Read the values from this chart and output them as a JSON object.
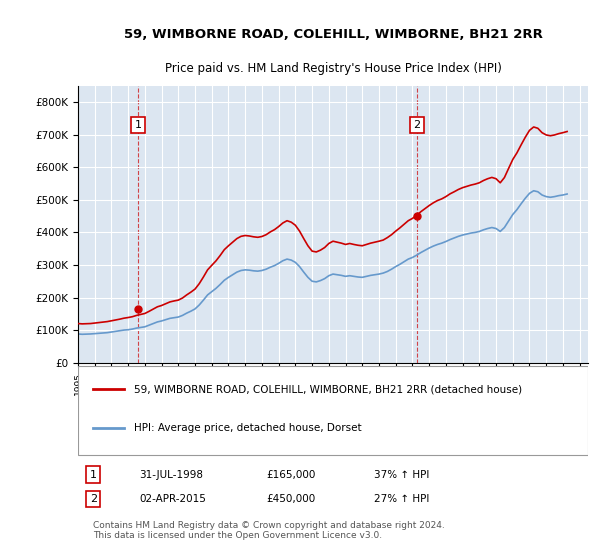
{
  "title": "59, WIMBORNE ROAD, COLEHILL, WIMBORNE, BH21 2RR",
  "subtitle": "Price paid vs. HM Land Registry's House Price Index (HPI)",
  "xlabel": "",
  "ylabel": "",
  "ylim": [
    0,
    850000
  ],
  "yticks": [
    0,
    100000,
    200000,
    300000,
    400000,
    500000,
    600000,
    700000,
    800000
  ],
  "ytick_labels": [
    "£0",
    "£100K",
    "£200K",
    "£300K",
    "£400K",
    "£500K",
    "£600K",
    "£700K",
    "£800K"
  ],
  "background_color": "#dce6f1",
  "plot_bg_color": "#dce6f1",
  "grid_color": "#ffffff",
  "red_line_color": "#cc0000",
  "blue_line_color": "#6699cc",
  "transaction1": {
    "date": "31-JUL-1998",
    "price": 165000,
    "label": "1",
    "pct": "37% ↑ HPI"
  },
  "transaction2": {
    "date": "02-APR-2015",
    "price": 450000,
    "label": "2",
    "pct": "27% ↑ HPI"
  },
  "legend_label_red": "59, WIMBORNE ROAD, COLEHILL, WIMBORNE, BH21 2RR (detached house)",
  "legend_label_blue": "HPI: Average price, detached house, Dorset",
  "footer": "Contains HM Land Registry data © Crown copyright and database right 2024.\nThis data is licensed under the Open Government Licence v3.0.",
  "x_start_year": 1995,
  "x_end_year": 2025,
  "hpi_data": {
    "years": [
      1995.0,
      1995.25,
      1995.5,
      1995.75,
      1996.0,
      1996.25,
      1996.5,
      1996.75,
      1997.0,
      1997.25,
      1997.5,
      1997.75,
      1998.0,
      1998.25,
      1998.5,
      1998.75,
      1999.0,
      1999.25,
      1999.5,
      1999.75,
      2000.0,
      2000.25,
      2000.5,
      2000.75,
      2001.0,
      2001.25,
      2001.5,
      2001.75,
      2002.0,
      2002.25,
      2002.5,
      2002.75,
      2003.0,
      2003.25,
      2003.5,
      2003.75,
      2004.0,
      2004.25,
      2004.5,
      2004.75,
      2005.0,
      2005.25,
      2005.5,
      2005.75,
      2006.0,
      2006.25,
      2006.5,
      2006.75,
      2007.0,
      2007.25,
      2007.5,
      2007.75,
      2008.0,
      2008.25,
      2008.5,
      2008.75,
      2009.0,
      2009.25,
      2009.5,
      2009.75,
      2010.0,
      2010.25,
      2010.5,
      2010.75,
      2011.0,
      2011.25,
      2011.5,
      2011.75,
      2012.0,
      2012.25,
      2012.5,
      2012.75,
      2013.0,
      2013.25,
      2013.5,
      2013.75,
      2014.0,
      2014.25,
      2014.5,
      2014.75,
      2015.0,
      2015.25,
      2015.5,
      2015.75,
      2016.0,
      2016.25,
      2016.5,
      2016.75,
      2017.0,
      2017.25,
      2017.5,
      2017.75,
      2018.0,
      2018.25,
      2018.5,
      2018.75,
      2019.0,
      2019.25,
      2019.5,
      2019.75,
      2020.0,
      2020.25,
      2020.5,
      2020.75,
      2021.0,
      2021.25,
      2021.5,
      2021.75,
      2022.0,
      2022.25,
      2022.5,
      2022.75,
      2023.0,
      2023.25,
      2023.5,
      2023.75,
      2024.0,
      2024.25
    ],
    "values": [
      88000,
      87000,
      87500,
      88000,
      89000,
      90000,
      91000,
      92000,
      94000,
      96000,
      98000,
      100000,
      101000,
      103000,
      106000,
      108000,
      110000,
      115000,
      120000,
      125000,
      128000,
      132000,
      136000,
      138000,
      140000,
      145000,
      152000,
      158000,
      165000,
      177000,
      192000,
      208000,
      218000,
      228000,
      240000,
      253000,
      262000,
      270000,
      278000,
      283000,
      285000,
      284000,
      282000,
      281000,
      283000,
      287000,
      293000,
      298000,
      305000,
      313000,
      318000,
      315000,
      308000,
      295000,
      278000,
      262000,
      250000,
      248000,
      252000,
      258000,
      267000,
      272000,
      270000,
      268000,
      265000,
      267000,
      265000,
      263000,
      262000,
      265000,
      268000,
      270000,
      272000,
      275000,
      280000,
      287000,
      295000,
      302000,
      310000,
      318000,
      323000,
      330000,
      338000,
      345000,
      352000,
      358000,
      363000,
      367000,
      372000,
      378000,
      383000,
      388000,
      392000,
      395000,
      398000,
      400000,
      403000,
      408000,
      412000,
      415000,
      412000,
      403000,
      415000,
      435000,
      455000,
      470000,
      488000,
      505000,
      520000,
      528000,
      525000,
      515000,
      510000,
      508000,
      510000,
      513000,
      515000,
      518000
    ]
  },
  "property_data": {
    "years": [
      1995.0,
      1995.25,
      1995.5,
      1995.75,
      1996.0,
      1996.25,
      1996.5,
      1996.75,
      1997.0,
      1997.25,
      1997.5,
      1997.75,
      1998.0,
      1998.25,
      1998.5,
      1998.75,
      1999.0,
      1999.25,
      1999.5,
      1999.75,
      2000.0,
      2000.25,
      2000.5,
      2000.75,
      2001.0,
      2001.25,
      2001.5,
      2001.75,
      2002.0,
      2002.25,
      2002.5,
      2002.75,
      2003.0,
      2003.25,
      2003.5,
      2003.75,
      2004.0,
      2004.25,
      2004.5,
      2004.75,
      2005.0,
      2005.25,
      2005.5,
      2005.75,
      2006.0,
      2006.25,
      2006.5,
      2006.75,
      2007.0,
      2007.25,
      2007.5,
      2007.75,
      2008.0,
      2008.25,
      2008.5,
      2008.75,
      2009.0,
      2009.25,
      2009.5,
      2009.75,
      2010.0,
      2010.25,
      2010.5,
      2010.75,
      2011.0,
      2011.25,
      2011.5,
      2011.75,
      2012.0,
      2012.25,
      2012.5,
      2012.75,
      2013.0,
      2013.25,
      2013.5,
      2013.75,
      2014.0,
      2014.25,
      2014.5,
      2014.75,
      2015.0,
      2015.25,
      2015.5,
      2015.75,
      2016.0,
      2016.25,
      2016.5,
      2016.75,
      2017.0,
      2017.25,
      2017.5,
      2017.75,
      2018.0,
      2018.25,
      2018.5,
      2018.75,
      2019.0,
      2019.25,
      2019.5,
      2019.75,
      2020.0,
      2020.25,
      2020.5,
      2020.75,
      2021.0,
      2021.25,
      2021.5,
      2021.75,
      2022.0,
      2022.25,
      2022.5,
      2022.75,
      2023.0,
      2023.25,
      2023.5,
      2023.75,
      2024.0,
      2024.25
    ],
    "values": [
      120000,
      119000,
      119500,
      120000,
      121500,
      123000,
      124500,
      126000,
      128500,
      131000,
      133500,
      136500,
      138500,
      141000,
      145000,
      148000,
      151000,
      157500,
      164500,
      171500,
      175500,
      181000,
      186500,
      189500,
      192000,
      198500,
      208000,
      216500,
      226000,
      242500,
      263000,
      285000,
      299000,
      312500,
      329000,
      347000,
      359000,
      370000,
      381000,
      388000,
      390500,
      389000,
      386500,
      385000,
      387500,
      393000,
      401500,
      408500,
      418000,
      429000,
      436000,
      431500,
      422000,
      404000,
      381000,
      359000,
      342500,
      340000,
      345500,
      353500,
      366000,
      373000,
      370000,
      367000,
      363000,
      366000,
      363000,
      360500,
      359000,
      363000,
      367000,
      370000,
      373000,
      376500,
      384000,
      393000,
      404000,
      414000,
      425000,
      436000,
      443000,
      452500,
      463500,
      473000,
      482500,
      491000,
      498000,
      503000,
      510000,
      518500,
      525000,
      532000,
      537500,
      541500,
      545500,
      548500,
      552500,
      559500,
      565000,
      569000,
      565000,
      552500,
      568500,
      596500,
      624000,
      644500,
      669000,
      692500,
      713500,
      724000,
      720000,
      706500,
      699500,
      697000,
      699500,
      703500,
      706500,
      710000
    ]
  }
}
